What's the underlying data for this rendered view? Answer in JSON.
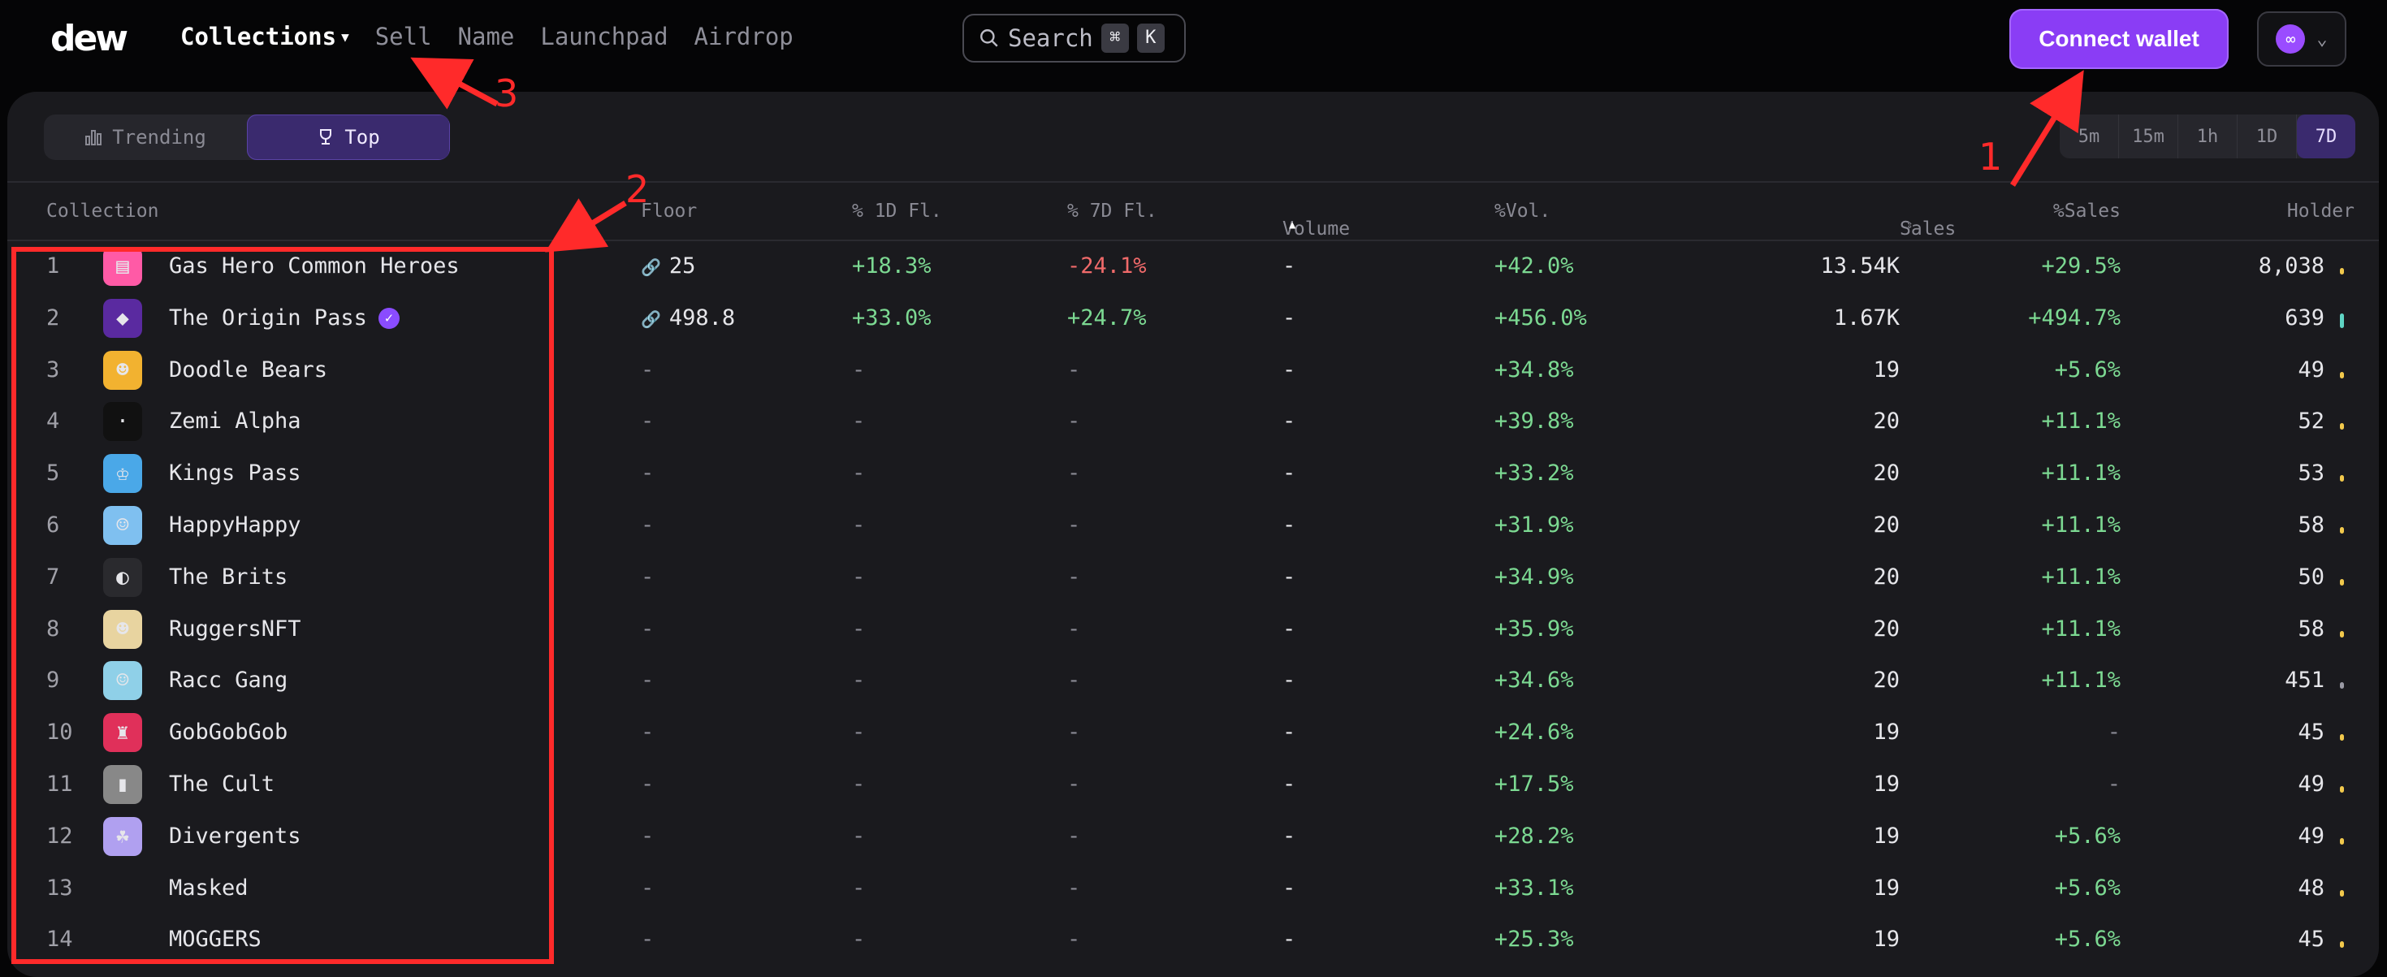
{
  "logo": "dew",
  "nav": {
    "collections": "Collections",
    "sell": "Sell",
    "name": "Name",
    "launchpad": "Launchpad",
    "airdrop": "Airdrop"
  },
  "search": {
    "label": "Search",
    "key1": "⌘",
    "key2": "K"
  },
  "connect_wallet": "Connect wallet",
  "tabs": {
    "trending": "Trending",
    "top": "Top"
  },
  "timeframes": [
    "5m",
    "15m",
    "1h",
    "1D",
    "7D"
  ],
  "columns": {
    "collection": "Collection",
    "floor": "Floor",
    "d1": "% 1D Fl.",
    "d7": "% 7D Fl.",
    "volume": "Volume",
    "pvol": "%Vol.",
    "sales": "Sales",
    "psales": "%Sales",
    "holder": "Holder"
  },
  "rows": [
    {
      "rank": "1",
      "name": "Gas Hero Common Heroes",
      "floor": "25",
      "d1": "+18.3%",
      "d7": "-24.1%",
      "volume": "-",
      "pvol": "+42.0%",
      "sales": "13.54K",
      "psales": "+29.5%",
      "holder": "8,038"
    },
    {
      "rank": "2",
      "name": "The Origin Pass",
      "floor": "498.8",
      "d1": "+33.0%",
      "d7": "+24.7%",
      "volume": "-",
      "pvol": "+456.0%",
      "sales": "1.67K",
      "psales": "+494.7%",
      "holder": "639"
    },
    {
      "rank": "3",
      "name": "Doodle Bears",
      "floor": "-",
      "d1": "-",
      "d7": "-",
      "volume": "-",
      "pvol": "+34.8%",
      "sales": "19",
      "psales": "+5.6%",
      "holder": "49"
    },
    {
      "rank": "4",
      "name": "Zemi Alpha",
      "floor": "-",
      "d1": "-",
      "d7": "-",
      "volume": "-",
      "pvol": "+39.8%",
      "sales": "20",
      "psales": "+11.1%",
      "holder": "52"
    },
    {
      "rank": "5",
      "name": "Kings Pass",
      "floor": "-",
      "d1": "-",
      "d7": "-",
      "volume": "-",
      "pvol": "+33.2%",
      "sales": "20",
      "psales": "+11.1%",
      "holder": "53"
    },
    {
      "rank": "6",
      "name": "HappyHappy",
      "floor": "-",
      "d1": "-",
      "d7": "-",
      "volume": "-",
      "pvol": "+31.9%",
      "sales": "20",
      "psales": "+11.1%",
      "holder": "58"
    },
    {
      "rank": "7",
      "name": "The Brits",
      "floor": "-",
      "d1": "-",
      "d7": "-",
      "volume": "-",
      "pvol": "+34.9%",
      "sales": "20",
      "psales": "+11.1%",
      "holder": "50"
    },
    {
      "rank": "8",
      "name": "RuggersNFT",
      "floor": "-",
      "d1": "-",
      "d7": "-",
      "volume": "-",
      "pvol": "+35.9%",
      "sales": "20",
      "psales": "+11.1%",
      "holder": "58"
    },
    {
      "rank": "9",
      "name": "Racc Gang",
      "floor": "-",
      "d1": "-",
      "d7": "-",
      "volume": "-",
      "pvol": "+34.6%",
      "sales": "20",
      "psales": "+11.1%",
      "holder": "451"
    },
    {
      "rank": "10",
      "name": "GobGobGob",
      "floor": "-",
      "d1": "-",
      "d7": "-",
      "volume": "-",
      "pvol": "+24.6%",
      "sales": "19",
      "psales": "-",
      "holder": "45"
    },
    {
      "rank": "11",
      "name": "The Cult",
      "floor": "-",
      "d1": "-",
      "d7": "-",
      "volume": "-",
      "pvol": "+17.5%",
      "sales": "19",
      "psales": "-",
      "holder": "49"
    },
    {
      "rank": "12",
      "name": "Divergents",
      "floor": "-",
      "d1": "-",
      "d7": "-",
      "volume": "-",
      "pvol": "+28.2%",
      "sales": "19",
      "psales": "+5.6%",
      "holder": "49"
    },
    {
      "rank": "13",
      "name": "Masked",
      "floor": "-",
      "d1": "-",
      "d7": "-",
      "volume": "-",
      "pvol": "+33.1%",
      "sales": "19",
      "psales": "+5.6%",
      "holder": "48"
    },
    {
      "rank": "14",
      "name": "MOGGERS",
      "floor": "-",
      "d1": "-",
      "d7": "-",
      "volume": "-",
      "pvol": "+25.3%",
      "sales": "19",
      "psales": "+5.6%",
      "holder": "45"
    }
  ],
  "annotations": [
    "1",
    "2",
    "3"
  ],
  "colors": {
    "accent": "#8a3df5",
    "positive": "#7cd992",
    "negative": "#f06a6a",
    "annotation": "#ff2a2a"
  }
}
